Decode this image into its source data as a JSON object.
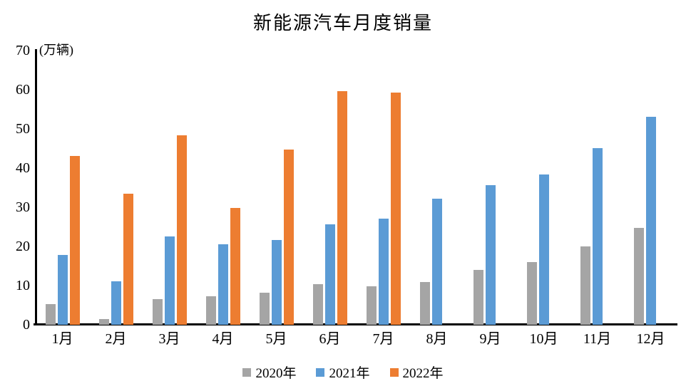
{
  "chart_data": {
    "type": "bar",
    "title": "新能源汽车月度销量",
    "unit_label": "(万辆)",
    "xlabel": "",
    "ylabel": "(万辆)",
    "categories": [
      "1月",
      "2月",
      "3月",
      "4月",
      "5月",
      "6月",
      "7月",
      "8月",
      "9月",
      "10月",
      "11月",
      "12月"
    ],
    "series": [
      {
        "name": "2020年",
        "color": "#A5A5A5",
        "values": [
          5.2,
          1.5,
          6.6,
          7.2,
          8.2,
          10.4,
          9.8,
          10.9,
          14.0,
          16.0,
          20.0,
          24.8
        ]
      },
      {
        "name": "2021年",
        "color": "#5B9BD5",
        "values": [
          17.9,
          11.0,
          22.6,
          20.6,
          21.7,
          25.6,
          27.1,
          32.1,
          35.7,
          38.3,
          45.0,
          53.1
        ]
      },
      {
        "name": "2022年",
        "color": "#ED7D31",
        "values": [
          43.1,
          33.4,
          48.4,
          29.9,
          44.7,
          59.6,
          59.3,
          null,
          null,
          null,
          null,
          null
        ]
      }
    ],
    "ylim": [
      0,
      70
    ],
    "yticks": [
      0,
      10,
      20,
      30,
      40,
      50,
      60,
      70
    ],
    "grid": false,
    "legend_position": "bottom",
    "axis_color": "#000000",
    "background_color": "#ffffff"
  }
}
